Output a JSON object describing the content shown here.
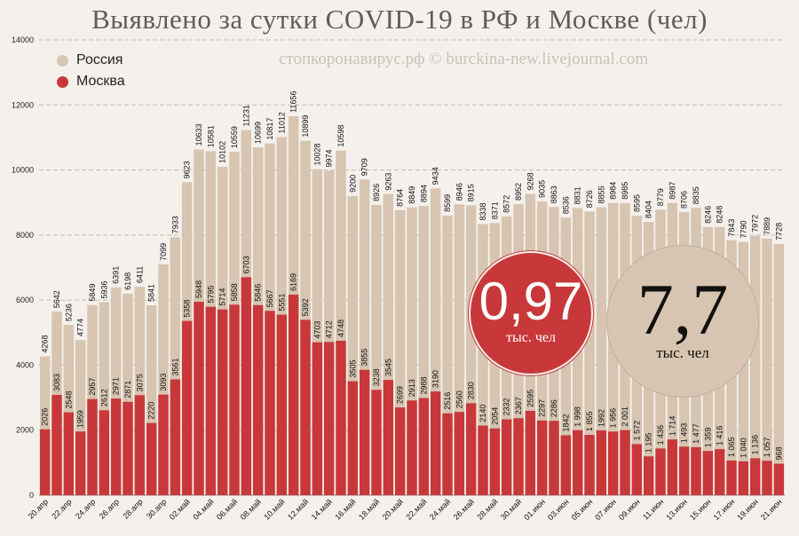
{
  "title": "Выявлено за сутки COVID-19 в РФ и Москве (чел)",
  "watermark": "стопкоронавирус.рф © burckina-new.livejournal.com",
  "legend": {
    "russia": "Россия",
    "moscow": "Москва"
  },
  "colors": {
    "russia": "#d7c5b1",
    "moscow": "#c8383a",
    "grid": "#bdbdbd",
    "background": "#f4f1ec"
  },
  "bubbles": {
    "moscow_value": "0,97",
    "moscow_unit": "тыс. чел",
    "russia_value": "7,7",
    "russia_unit": "тыс. чел"
  },
  "chart_data": {
    "type": "bar",
    "title": "Выявлено за сутки COVID-19 в РФ и Москве (чел)",
    "ylim": [
      0,
      14000
    ],
    "yticks": [
      0,
      2000,
      4000,
      6000,
      8000,
      10000,
      12000,
      14000
    ],
    "grid": "horizontal dashed",
    "legend_position": "top-left",
    "x_tick_labels": [
      "20.апр",
      "22.апр",
      "24.апр",
      "26.апр",
      "28.апр",
      "30.апр",
      "02.май",
      "04.май",
      "06.май",
      "08.май",
      "10.май",
      "12.май",
      "14.май",
      "16.май",
      "18.май",
      "20.май",
      "22.май",
      "24.май",
      "26.май",
      "28.май",
      "30.май",
      "01.июн",
      "03.июн",
      "05.июн",
      "07.июн",
      "09.июн",
      "11.июн",
      "13.июн",
      "15.июн",
      "17.июн",
      "19.июн",
      "21.июн"
    ],
    "series": [
      {
        "name": "Россия",
        "values": [
          4268,
          5642,
          5236,
          4774,
          5849,
          5936,
          6391,
          6198,
          6411,
          5841,
          7099,
          7933,
          9623,
          10633,
          10581,
          10102,
          10559,
          11231,
          10699,
          10817,
          11012,
          11656,
          10899,
          10028,
          9974,
          10598,
          9200,
          9709,
          8926,
          9263,
          8764,
          8849,
          8894,
          9434,
          8599,
          8946,
          8915,
          8338,
          8371,
          8572,
          8952,
          9268,
          9035,
          8863,
          8536,
          8831,
          8726,
          8855,
          8984,
          8985,
          8595,
          8404,
          8779,
          8987,
          8706,
          8835,
          8246,
          8248,
          7843,
          7790,
          7972,
          7889,
          7728
        ],
        "labels": [
          "4268",
          "5642",
          "5236",
          "4774",
          "5849",
          "5936",
          "6391",
          "6198",
          "6411",
          "5841",
          "7099",
          "7933",
          "9623",
          "10633",
          "10581",
          "10102",
          "10559",
          "11231",
          "10699",
          "10817",
          "11012",
          "11656",
          "10899",
          "10028",
          "9974",
          "10598",
          "9200",
          "9709",
          "8926",
          "9263",
          "8764",
          "8849",
          "8894",
          "9434",
          "8599",
          "8946",
          "8915",
          "8338",
          "8371",
          "8572",
          "8952",
          "9268",
          "9035",
          "8863",
          "8536",
          "8831",
          "8726",
          "8855",
          "8984",
          "8985",
          "8595",
          "8404",
          "8779",
          "8987",
          "8706",
          "8835",
          "8246",
          "8248",
          "7843",
          "7790",
          "7972",
          "7889",
          "7728"
        ]
      },
      {
        "name": "Москва",
        "values": [
          2026,
          3083,
          2548,
          1959,
          2957,
          2612,
          2971,
          2871,
          3075,
          2220,
          3093,
          3561,
          5358,
          5948,
          5795,
          5714,
          5858,
          6703,
          5846,
          5667,
          5551,
          6169,
          5392,
          4703,
          4712,
          4748,
          3505,
          3855,
          3238,
          3545,
          2699,
          2913,
          2988,
          3190,
          2516,
          2560,
          2830,
          2140,
          2054,
          2332,
          2367,
          2595,
          2297,
          2286,
          1842,
          1998,
          1855,
          1992,
          1956,
          2001,
          1572,
          1195,
          1436,
          1714,
          1493,
          1477,
          1359,
          1416,
          1065,
          1040,
          1136,
          1057,
          968
        ],
        "labels": [
          "2026",
          "3083",
          "2548",
          "1959",
          "2957",
          "2612",
          "2971",
          "2871",
          "3075",
          "2220",
          "3093",
          "3561",
          "5358",
          "5948",
          "5795",
          "5714",
          "5858",
          "6703",
          "5846",
          "5667",
          "5551",
          "6169",
          "5392",
          "4703",
          "4712",
          "4748",
          "3505",
          "3855",
          "3238",
          "3545",
          "2699",
          "2913",
          "2988",
          "3190",
          "2516",
          "2560",
          "2830",
          "2140",
          "2054",
          "2332",
          "2367",
          "2595",
          "2297",
          "2286",
          "1842",
          "1 998",
          "1 855",
          "1992",
          "1 956",
          "2 001",
          "1 572",
          "1 195",
          "1 436",
          "1 714",
          "1 493",
          "1 477",
          "1 359",
          "1 416",
          "1 065",
          "1 040",
          "1 136",
          "1 057",
          "968"
        ]
      }
    ]
  }
}
